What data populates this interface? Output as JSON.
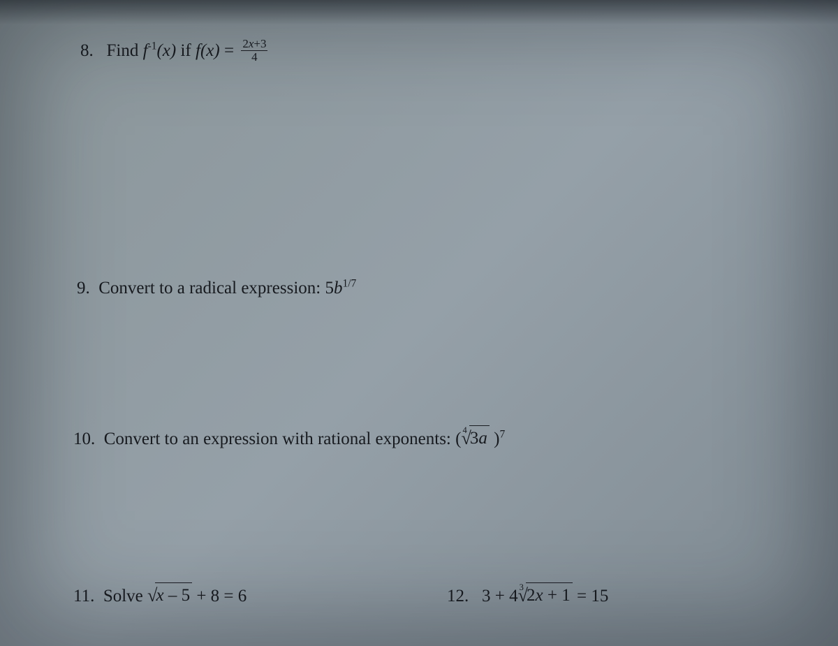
{
  "page": {
    "background_gradient": [
      "#8a9599",
      "#95a0a8",
      "#7f8a92"
    ],
    "text_color": "#1a1d22",
    "font_family": "Times New Roman",
    "base_fontsize_pt": 19
  },
  "problems": {
    "p8": {
      "number": "8.",
      "prompt_before": "Find ",
      "func_inv": "f",
      "inv_sup": "-1",
      "inv_arg": "(x)",
      "middle": " if ",
      "func": "f",
      "func_arg": "(x)",
      "equals": " = ",
      "frac_num": "2x+3",
      "frac_den": "4"
    },
    "p9": {
      "number": "9.",
      "prompt": "Convert to a radical expression: ",
      "coef": "5",
      "base": "b",
      "exp": "1/7"
    },
    "p10": {
      "number": "10.",
      "prompt": "Convert to an expression with rational exponents: ",
      "open": "(",
      "rad_index": "4",
      "radicand": "3a",
      "space": " ",
      "close": ")",
      "outer_exp": "7"
    },
    "p11": {
      "number": "11.",
      "prompt": "Solve ",
      "radicand": "x – 5",
      "after": " + 8 = 6"
    },
    "p12": {
      "number": "12.",
      "before": "3 + 4",
      "rad_index": "3",
      "radicand": "2x + 1",
      "after": " = 15"
    }
  }
}
